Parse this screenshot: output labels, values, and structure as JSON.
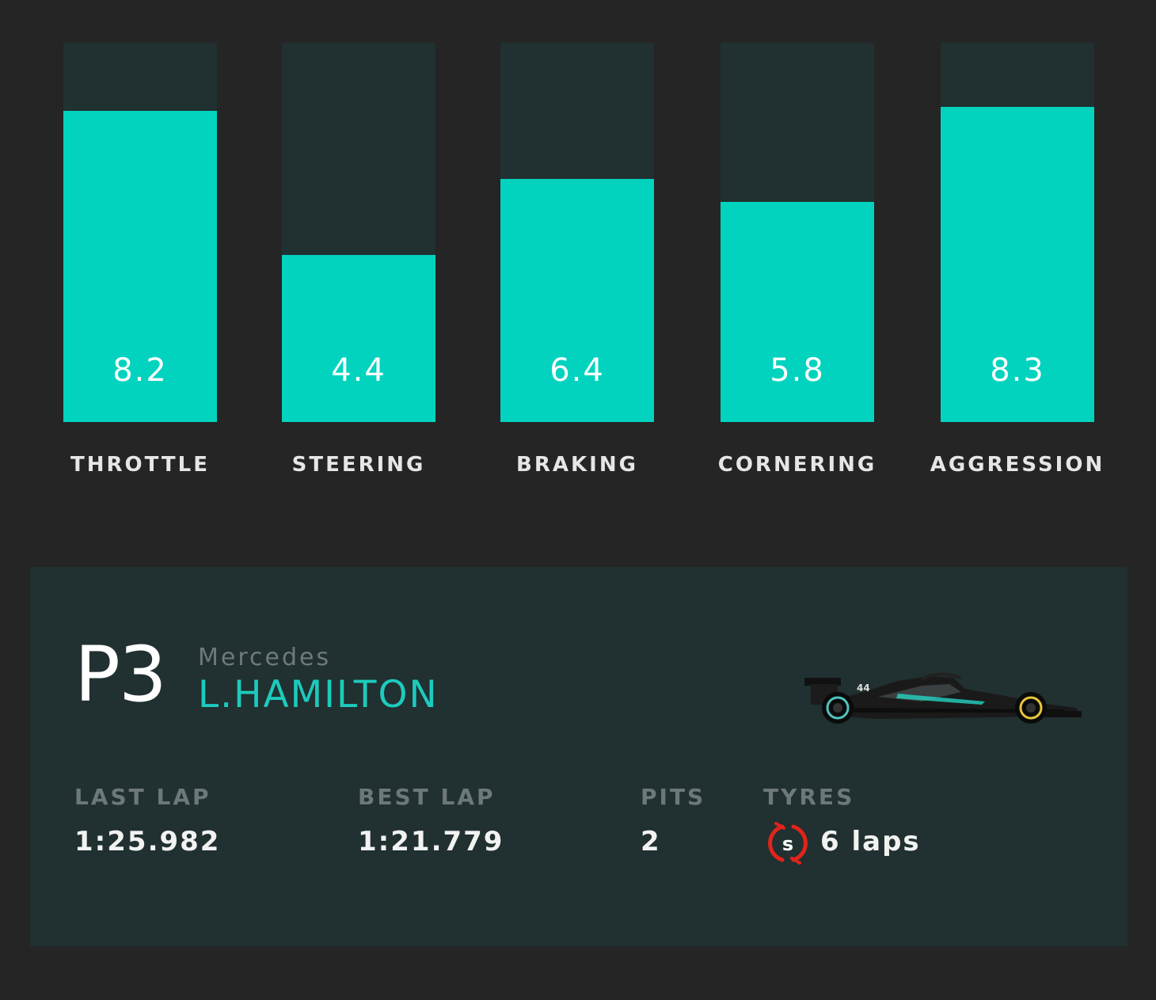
{
  "chart_data": {
    "type": "bar",
    "categories": [
      "THROTTLE",
      "STEERING",
      "BRAKING",
      "CORNERING",
      "AGGRESSION"
    ],
    "values": [
      8.2,
      4.4,
      6.4,
      5.8,
      8.3
    ],
    "value_labels": [
      "8.2",
      "4.4",
      "6.4",
      "5.8",
      "8.3"
    ],
    "ylim": [
      0,
      10
    ],
    "grid": false,
    "colors": {
      "fill": "#02d3bf",
      "track": "#213030"
    }
  },
  "driver": {
    "position": "P3",
    "team": "Mercedes",
    "name": "L.HAMILTON",
    "car_icon": "mercedes-f1-car-image"
  },
  "stats": {
    "last_lap": {
      "label": "LAST LAP",
      "value": "1:25.982"
    },
    "best_lap": {
      "label": "BEST LAP",
      "value": "1:21.779"
    },
    "pits": {
      "label": "PITS",
      "value": "2"
    },
    "tyres": {
      "label": "TYRES",
      "compound": "S",
      "laps": "6 laps",
      "compound_color": "#e1241b",
      "icon": "soft-tyre-icon"
    }
  }
}
